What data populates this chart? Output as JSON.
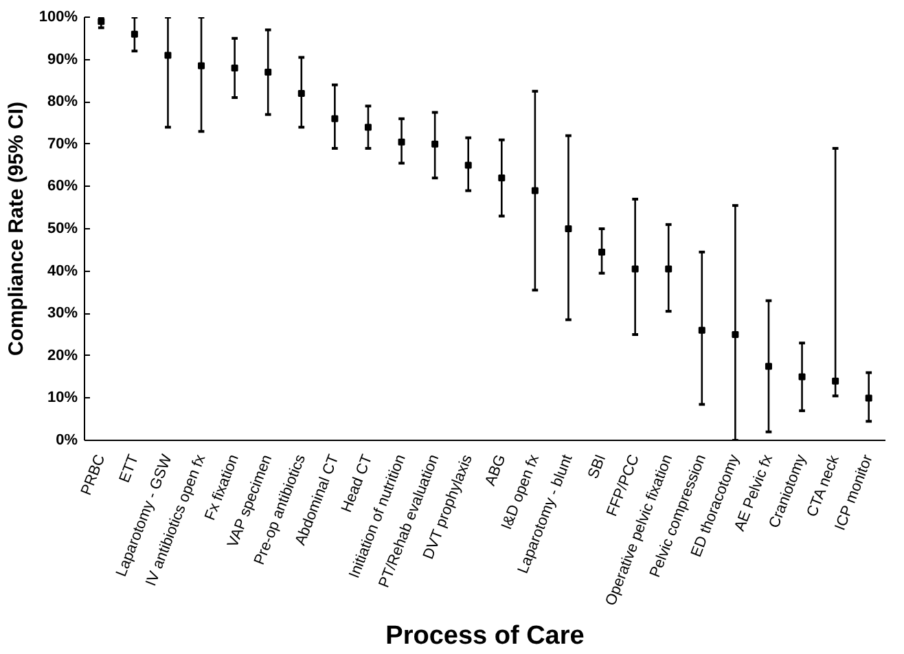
{
  "chart_data": {
    "type": "scatter",
    "xlabel": "Process of Care",
    "ylabel": "Compliance Rate (95% CI)",
    "categories": [
      "PRBC",
      "ETT",
      "Laparotomy - GSW",
      "IV antibiotics open fx",
      "Fx fixation",
      "VAP specimen",
      "Pre-op antibiotics",
      "Abdominal CT",
      "Head CT",
      "Initiation of nutrition",
      "PT/Rehab evaluation",
      "DVT prophylaxis",
      "ABG",
      "I&D open fx",
      "Laparotomy - blunt",
      "SBI",
      "FFP/PCC",
      "Operative pelvic fixation",
      "Pelvic compression",
      "ED thoracotomy",
      "AE Pelvic fx",
      "Craniotomy",
      "CTA neck",
      "ICP monitor"
    ],
    "series": [
      {
        "color": "#000000",
        "values": [
          99,
          96,
          91,
          88.5,
          88,
          87,
          82,
          76,
          74,
          70.5,
          70,
          65,
          62,
          59,
          50,
          44.5,
          40.5,
          40.5,
          26,
          25,
          17.5,
          15,
          14,
          10
        ],
        "errors": [
          [
            97.5,
            100
          ],
          [
            92,
            100
          ],
          [
            74,
            100
          ],
          [
            73,
            100
          ],
          [
            81,
            95
          ],
          [
            77,
            97
          ],
          [
            74,
            90.5
          ],
          [
            69,
            84
          ],
          [
            69,
            79
          ],
          [
            65.5,
            76
          ],
          [
            62,
            77.5
          ],
          [
            59,
            71.5
          ],
          [
            53,
            71
          ],
          [
            35.5,
            82.5
          ],
          [
            28.5,
            72
          ],
          [
            39.5,
            50
          ],
          [
            25,
            57
          ],
          [
            30.5,
            51
          ],
          [
            8.5,
            44.5
          ],
          [
            0,
            55.5
          ],
          [
            2,
            33
          ],
          [
            7,
            23
          ],
          [
            10.5,
            69
          ],
          [
            4.5,
            16
          ]
        ]
      }
    ],
    "ylim": [
      0,
      100
    ],
    "yticks": [
      {
        "value": 0,
        "label": "0%"
      },
      {
        "value": 10,
        "label": "10%"
      },
      {
        "value": 20,
        "label": "20%"
      },
      {
        "value": 30,
        "label": "30%"
      },
      {
        "value": 40,
        "label": "40%"
      },
      {
        "value": 50,
        "label": "50%"
      },
      {
        "value": 60,
        "label": "60%"
      },
      {
        "value": 70,
        "label": "70%"
      },
      {
        "value": 80,
        "label": "80%"
      },
      {
        "value": 90,
        "label": "90%"
      },
      {
        "value": 100,
        "label": "100%"
      }
    ],
    "marker": "square",
    "grid": false
  }
}
